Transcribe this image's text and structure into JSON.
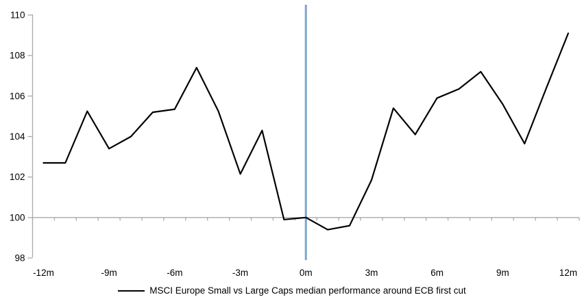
{
  "chart_data": {
    "type": "line",
    "title": "",
    "xlabel": "",
    "ylabel": "",
    "x_unit": "months relative to ECB first cut",
    "x": [
      -12,
      -11,
      -10,
      -9,
      -8,
      -7,
      -6,
      -5,
      -4,
      -3,
      -2,
      -1,
      0,
      1,
      2,
      3,
      4,
      5,
      6,
      7,
      8,
      9,
      10,
      11,
      12
    ],
    "series": [
      {
        "name": "MSCI Europe Small vs Large Caps median performance around ECB first cut",
        "color": "#000000",
        "values": [
          102.7,
          102.7,
          105.25,
          103.4,
          104.0,
          105.2,
          105.35,
          107.4,
          105.25,
          102.15,
          104.3,
          99.9,
          100.0,
          99.4,
          99.6,
          101.85,
          105.4,
          104.1,
          105.9,
          106.35,
          107.2,
          105.6,
          103.65,
          106.4,
          109.1
        ]
      }
    ],
    "ylim": [
      98,
      110
    ],
    "y_ticks": [
      98,
      100,
      102,
      104,
      106,
      108,
      110
    ],
    "x_tick_labels": [
      {
        "month": -12,
        "label": "-12m"
      },
      {
        "month": -9,
        "label": "-9m"
      },
      {
        "month": -6,
        "label": "-6m"
      },
      {
        "month": -3,
        "label": "-3m"
      },
      {
        "month": 0,
        "label": "0m"
      },
      {
        "month": 3,
        "label": "3m"
      },
      {
        "month": 6,
        "label": "6m"
      },
      {
        "month": 9,
        "label": "9m"
      },
      {
        "month": 12,
        "label": "12m"
      }
    ],
    "reference_lines": {
      "vertical_at_x": 0,
      "horizontal_at_y": 100
    },
    "grid": false,
    "legend_position": "bottom"
  },
  "legend": {
    "series_label": "MSCI Europe Small vs Large Caps median performance around ECB first cut"
  },
  "colors": {
    "series_line": "#000000",
    "vertical_reference_line": "#7EA6CE",
    "horizontal_reference_line": "#A9A9A9",
    "axis_line": "#A9A9A9",
    "tick_text": "#000000",
    "background": "#FFFFFF"
  }
}
